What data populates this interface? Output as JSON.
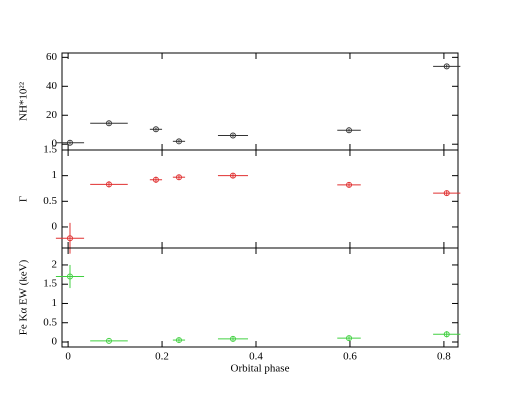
{
  "chart_data": [
    {
      "type": "scatter",
      "ylabel": "NH*10²²",
      "color": "#333333",
      "x": [
        0.004,
        0.087,
        0.187,
        0.236,
        0.351,
        0.598,
        0.806
      ],
      "xerr": [
        0.03,
        0.04,
        0.013,
        0.013,
        0.032,
        0.025,
        0.029
      ],
      "values": [
        1,
        14.5,
        10.3,
        2,
        6,
        9.6,
        53.8
      ],
      "yerr": [
        1,
        1,
        1,
        1,
        1,
        1,
        1
      ],
      "ylim": [
        -4,
        63
      ],
      "yticks": [
        0,
        20,
        40,
        60
      ]
    },
    {
      "type": "scatter",
      "ylabel": "Γ",
      "color": "#e03030",
      "x": [
        0.004,
        0.087,
        0.187,
        0.236,
        0.351,
        0.598,
        0.806
      ],
      "xerr": [
        0.03,
        0.04,
        0.013,
        0.013,
        0.032,
        0.025,
        0.029
      ],
      "values": [
        -0.22,
        0.83,
        0.92,
        0.97,
        1.0,
        0.82,
        0.66
      ],
      "yerr": [
        0.3,
        0.06,
        0.06,
        0.04,
        0.04,
        0.04,
        0.04
      ],
      "ylim": [
        -0.41,
        1.5
      ],
      "yticks": [
        0,
        0.5,
        1,
        1.5
      ]
    },
    {
      "type": "scatter",
      "ylabel": "Fe Kα EW (keV)",
      "xlabel": "Orbital phase",
      "color": "#40d040",
      "x": [
        0.004,
        0.087,
        0.187,
        0.236,
        0.351,
        0.598,
        0.806
      ],
      "xerr": [
        0.03,
        0.04,
        0.013,
        0.013,
        0.032,
        0.025,
        0.029
      ],
      "values": [
        1.7,
        0.03,
        null,
        0.05,
        0.08,
        0.1,
        0.2
      ],
      "yerr": [
        0.3,
        0.03,
        null,
        0.05,
        0.05,
        0.05,
        0.08
      ],
      "xlim": [
        -0.013,
        0.83
      ],
      "xticks": [
        0,
        0.2,
        0.4,
        0.6,
        0.8
      ],
      "ylim": [
        -0.13,
        2.44
      ],
      "yticks": [
        0,
        0.5,
        1,
        1.5,
        2
      ]
    }
  ]
}
